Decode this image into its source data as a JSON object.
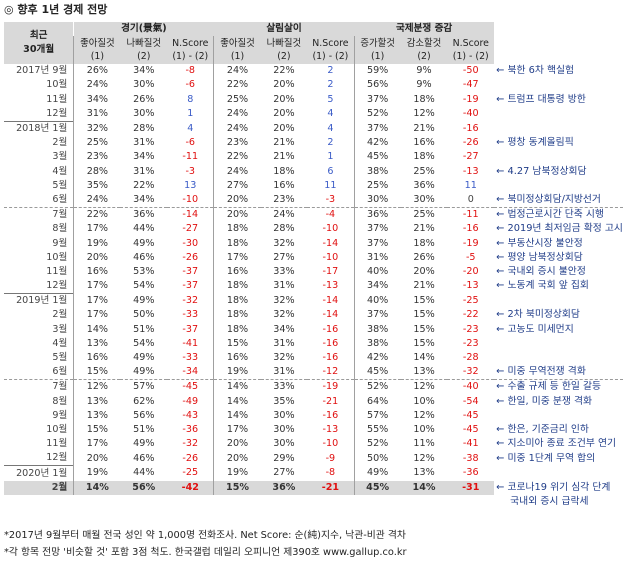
{
  "title": "◎ 향후 1년 경제 전망",
  "header": {
    "corner": "최근\n30개월",
    "groups": [
      "경기(景氣)",
      "살림살이",
      "국제분쟁 증감"
    ],
    "columns": [
      [
        "좋아질것\n(1)",
        "나빠질것\n(2)",
        "N.Score\n(1) - (2)"
      ],
      [
        "좋아질것\n(1)",
        "나빠질것\n(2)",
        "N.Score\n(1) - (2)"
      ],
      [
        "증가할것\n(1)",
        "감소할것\n(2)",
        "N.Score\n(1) - (2)"
      ]
    ]
  },
  "rows": [
    {
      "label": "2017년 9월",
      "v": [
        "26%",
        "34%",
        "-8",
        "24%",
        "22%",
        "2",
        "59%",
        "9%",
        "-50"
      ],
      "note": "북한 6차 핵실험"
    },
    {
      "label": "10월",
      "v": [
        "24%",
        "30%",
        "-6",
        "22%",
        "20%",
        "2",
        "56%",
        "9%",
        "-47"
      ],
      "note": ""
    },
    {
      "label": "11월",
      "v": [
        "34%",
        "26%",
        "8",
        "25%",
        "20%",
        "5",
        "37%",
        "18%",
        "-19"
      ],
      "note": "트럼프 대통령 방한"
    },
    {
      "label": "12월",
      "v": [
        "31%",
        "30%",
        "1",
        "24%",
        "20%",
        "4",
        "52%",
        "12%",
        "-40"
      ],
      "note": ""
    },
    {
      "label": "2018년 1월",
      "v": [
        "32%",
        "28%",
        "4",
        "24%",
        "20%",
        "4",
        "37%",
        "21%",
        "-16"
      ],
      "note": ""
    },
    {
      "label": "2월",
      "v": [
        "25%",
        "31%",
        "-6",
        "23%",
        "21%",
        "2",
        "42%",
        "16%",
        "-26"
      ],
      "note": "평창 동계올림픽"
    },
    {
      "label": "3월",
      "v": [
        "23%",
        "34%",
        "-11",
        "22%",
        "21%",
        "1",
        "45%",
        "18%",
        "-27"
      ],
      "note": ""
    },
    {
      "label": "4월",
      "v": [
        "28%",
        "31%",
        "-3",
        "24%",
        "18%",
        "6",
        "38%",
        "25%",
        "-13"
      ],
      "note": "4.27 남북정상회담"
    },
    {
      "label": "5월",
      "v": [
        "35%",
        "22%",
        "13",
        "27%",
        "16%",
        "11",
        "25%",
        "36%",
        "11"
      ],
      "note": ""
    },
    {
      "label": "6월",
      "v": [
        "24%",
        "34%",
        "-10",
        "20%",
        "23%",
        "-3",
        "30%",
        "30%",
        "0"
      ],
      "note": "북미정상회담/지방선거"
    },
    {
      "label": "7월",
      "v": [
        "22%",
        "36%",
        "-14",
        "20%",
        "24%",
        "-4",
        "36%",
        "25%",
        "-11"
      ],
      "note": "법정근로시간 단축 시행"
    },
    {
      "label": "8월",
      "v": [
        "17%",
        "44%",
        "-27",
        "18%",
        "28%",
        "-10",
        "37%",
        "21%",
        "-16"
      ],
      "note": "2019년 최저임금 확정 고시"
    },
    {
      "label": "9월",
      "v": [
        "19%",
        "49%",
        "-30",
        "18%",
        "32%",
        "-14",
        "37%",
        "18%",
        "-19"
      ],
      "note": "부동산시장 불안정"
    },
    {
      "label": "10월",
      "v": [
        "20%",
        "46%",
        "-26",
        "17%",
        "27%",
        "-10",
        "31%",
        "26%",
        "-5"
      ],
      "note": "평양 남북정상회담"
    },
    {
      "label": "11월",
      "v": [
        "16%",
        "53%",
        "-37",
        "16%",
        "33%",
        "-17",
        "40%",
        "20%",
        "-20"
      ],
      "note": "국내외 증시 불안정"
    },
    {
      "label": "12월",
      "v": [
        "17%",
        "54%",
        "-37",
        "18%",
        "31%",
        "-13",
        "34%",
        "21%",
        "-13"
      ],
      "note": "노동계 국회 앞 집회"
    },
    {
      "label": "2019년 1월",
      "v": [
        "17%",
        "49%",
        "-32",
        "18%",
        "32%",
        "-14",
        "40%",
        "15%",
        "-25"
      ],
      "note": ""
    },
    {
      "label": "2월",
      "v": [
        "17%",
        "50%",
        "-33",
        "18%",
        "32%",
        "-14",
        "37%",
        "15%",
        "-22"
      ],
      "note": "2차 북미정상회담"
    },
    {
      "label": "3월",
      "v": [
        "14%",
        "51%",
        "-37",
        "18%",
        "34%",
        "-16",
        "38%",
        "15%",
        "-23"
      ],
      "note": "고농도 미세먼지"
    },
    {
      "label": "4월",
      "v": [
        "13%",
        "54%",
        "-41",
        "15%",
        "31%",
        "-16",
        "38%",
        "15%",
        "-23"
      ],
      "note": ""
    },
    {
      "label": "5월",
      "v": [
        "16%",
        "49%",
        "-33",
        "16%",
        "32%",
        "-16",
        "42%",
        "14%",
        "-28"
      ],
      "note": ""
    },
    {
      "label": "6월",
      "v": [
        "15%",
        "49%",
        "-34",
        "19%",
        "31%",
        "-12",
        "45%",
        "13%",
        "-32"
      ],
      "note": "미중 무역전쟁 격화"
    },
    {
      "label": "7월",
      "v": [
        "12%",
        "57%",
        "-45",
        "14%",
        "33%",
        "-19",
        "52%",
        "12%",
        "-40"
      ],
      "note": "수출 규제 등 한일 갈등"
    },
    {
      "label": "8월",
      "v": [
        "13%",
        "62%",
        "-49",
        "14%",
        "35%",
        "-21",
        "64%",
        "10%",
        "-54"
      ],
      "note": "한일, 미중 분쟁 격화"
    },
    {
      "label": "9월",
      "v": [
        "13%",
        "56%",
        "-43",
        "14%",
        "30%",
        "-16",
        "57%",
        "12%",
        "-45"
      ],
      "note": ""
    },
    {
      "label": "10월",
      "v": [
        "15%",
        "51%",
        "-36",
        "17%",
        "30%",
        "-13",
        "55%",
        "10%",
        "-45"
      ],
      "note": "한은, 기준금리 인하"
    },
    {
      "label": "11월",
      "v": [
        "17%",
        "49%",
        "-32",
        "20%",
        "30%",
        "-10",
        "52%",
        "11%",
        "-41"
      ],
      "note": "지소미아 종료 조건부 연기"
    },
    {
      "label": "12월",
      "v": [
        "20%",
        "46%",
        "-26",
        "20%",
        "29%",
        "-9",
        "50%",
        "12%",
        "-38"
      ],
      "note": "미중 1단계 무역 합의"
    },
    {
      "label": "2020년 1월",
      "v": [
        "19%",
        "44%",
        "-25",
        "19%",
        "27%",
        "-8",
        "49%",
        "13%",
        "-36"
      ],
      "note": ""
    },
    {
      "label": "2월",
      "v": [
        "14%",
        "56%",
        "-42",
        "15%",
        "36%",
        "-21",
        "45%",
        "14%",
        "-31"
      ],
      "note": "코로나19 위기 심각 단계"
    }
  ],
  "extra_note": "국내외 증시 급락세",
  "footer": [
    "*2017년 9월부터 매월 전국 성인 약 1,000명 전화조사. Net Score: 순(純)지수, 낙관-비관 격차",
    "*각 항목 전망 '비슷할 것' 포함 3점 척도. 한국갤럽 데일리 오피니언 제390호 www.gallup.co.kr"
  ],
  "colors": {
    "negative": "#e01010",
    "positive": "#3a5bc7",
    "note": "#1f3c88",
    "header_bg": "#d9d9d9"
  }
}
